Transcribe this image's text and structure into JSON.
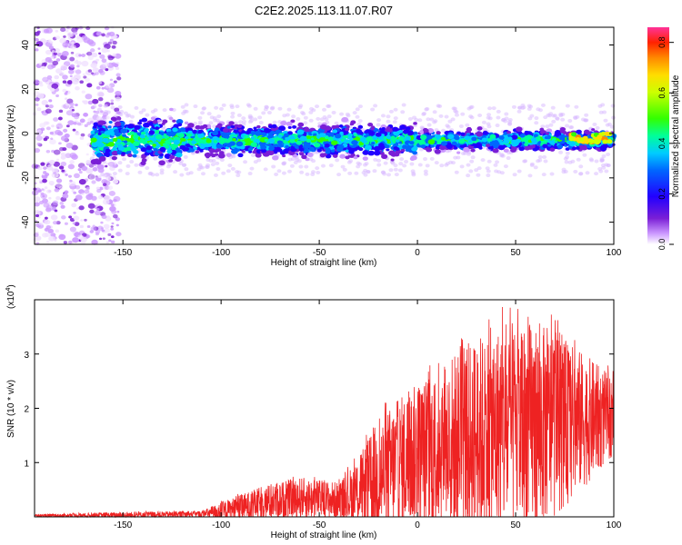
{
  "title": "C2E2.2025.113.11.07.R07",
  "chart_data": [
    {
      "type": "heatmap",
      "xlabel": "Height of straight line (km)",
      "ylabel": "Frequency (Hz)",
      "xlim": [
        -195,
        100
      ],
      "ylim": [
        -50,
        48
      ],
      "xticks": [
        -150,
        -100,
        -50,
        0,
        50,
        100
      ],
      "yticks": [
        -40,
        -20,
        0,
        20,
        40
      ],
      "colorbar": {
        "label": "Normalized spectral amplitude",
        "range": [
          0,
          0.86
        ],
        "ticks": [
          0.0,
          0.2,
          0.4,
          0.6,
          0.8
        ]
      },
      "signal_band": {
        "center_hz": -3,
        "halfwidth_hz": 8,
        "start_km": -165,
        "end_km": 100
      },
      "noise_region": {
        "start_km": -195,
        "end_km": -152
      }
    },
    {
      "type": "line",
      "xlabel": "Height of straight line (km)",
      "ylabel": "SNR (10 * v/v)",
      "y_multiplier": "(x10",
      "y_multiplier_exp": "4",
      "xlim": [
        -195,
        100
      ],
      "ylim": [
        0,
        4.0
      ],
      "xticks": [
        -150,
        -100,
        -50,
        0,
        50,
        100
      ],
      "yticks": [
        1,
        2,
        3
      ],
      "color": "#ee2222",
      "envelope": {
        "x": [
          -195,
          -150,
          -110,
          -100,
          -80,
          -60,
          -40,
          -30,
          -20,
          -10,
          0,
          20,
          40,
          60,
          80,
          100
        ],
        "mean": [
          0.02,
          0.03,
          0.05,
          0.1,
          0.25,
          0.35,
          0.3,
          0.45,
          0.7,
          0.95,
          1.15,
          1.35,
          1.55,
          1.65,
          1.75,
          1.85
        ],
        "peak": [
          0.05,
          0.1,
          0.12,
          0.3,
          0.6,
          0.8,
          0.7,
          1.2,
          2.0,
          2.4,
          2.7,
          3.4,
          3.9,
          3.95,
          3.4,
          2.7
        ]
      }
    }
  ]
}
